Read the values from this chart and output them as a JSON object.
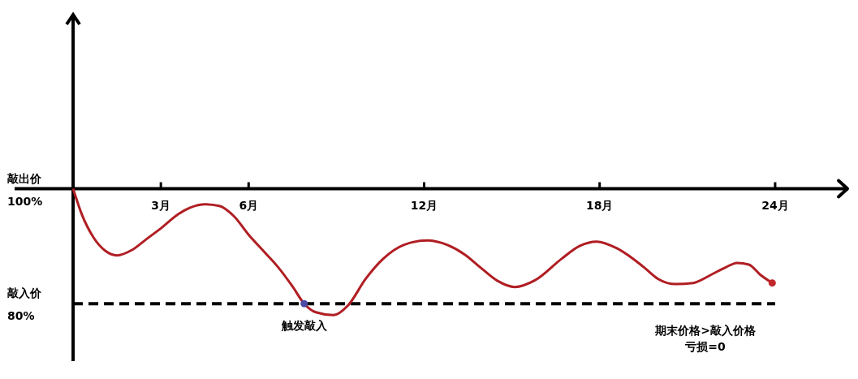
{
  "chart_data": {
    "type": "line",
    "xlim": [
      -2,
      26.5
    ],
    "ylim": [
      70,
      130
    ],
    "xticks": [
      {
        "value": 3,
        "label": "3月"
      },
      {
        "value": 6,
        "label": "6月"
      },
      {
        "value": 12,
        "label": "12月"
      },
      {
        "value": 18,
        "label": "18月"
      },
      {
        "value": 24,
        "label": "24月"
      }
    ],
    "yticks": [
      {
        "value": 100,
        "label": "100%"
      },
      {
        "value": 80,
        "label": "80%"
      }
    ],
    "grid": false,
    "legend": false,
    "series": [
      {
        "type": "line",
        "color": "#b01e23",
        "marker": "none",
        "x": [
          0,
          0.3,
          0.7,
          1.1,
          1.5,
          2.0,
          2.5,
          3.0,
          3.6,
          4.0,
          4.5,
          5.0,
          5.5,
          6.0,
          6.5,
          7.0,
          7.5,
          7.9,
          8.3,
          8.9,
          9.4,
          10.0,
          10.6,
          11.3,
          12.1,
          12.8,
          13.4,
          13.9,
          14.5,
          15.1,
          15.8,
          16.7,
          17.3,
          17.9,
          18.6,
          19.5,
          20.0,
          20.6,
          21.2,
          21.8,
          22.3,
          22.7,
          23.1,
          23.5,
          23.9
        ],
        "values": [
          100,
          95.5,
          91.5,
          89.2,
          88.4,
          89.3,
          91.2,
          93.1,
          95.6,
          96.7,
          97.3,
          97.0,
          95.2,
          92.0,
          89.2,
          86.4,
          83.0,
          80.0,
          78.5,
          78.0,
          79.7,
          84.3,
          87.8,
          90.2,
          91.0,
          90.2,
          88.5,
          86.4,
          84.0,
          82.9,
          84.1,
          87.8,
          90.0,
          90.8,
          89.6,
          86.4,
          84.3,
          83.4,
          83.6,
          85.0,
          86.3,
          87.1,
          86.8,
          85.0,
          83.6
        ]
      },
      {
        "type": "scatter",
        "color": "#4b4ba6",
        "marker": "circle",
        "x": [
          7.9
        ],
        "values": [
          80
        ]
      },
      {
        "type": "scatter",
        "color": "#c0282a",
        "marker": "circle",
        "x": [
          23.9
        ],
        "values": [
          83.6
        ]
      }
    ],
    "ref_lines": [
      {
        "axis": "y",
        "value": 80,
        "color": "#000000",
        "line_style": "dashed",
        "label": "敲入价"
      }
    ],
    "annotations": [
      {
        "text": "敲出价",
        "x": 0,
        "y": 100
      },
      {
        "text": "触发敲入",
        "x": 7.9,
        "y": 80
      },
      "期末价格>敲入价格",
      "亏损=0"
    ]
  }
}
